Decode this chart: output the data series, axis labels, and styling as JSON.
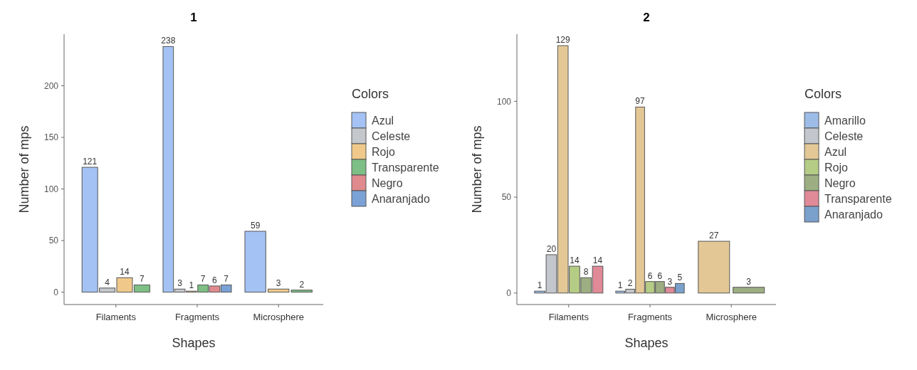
{
  "chart_data": [
    {
      "type": "bar",
      "title": "1",
      "xlabel": "Shapes",
      "ylabel": "Number of mps",
      "legend_title": "Colors",
      "legend": "right",
      "data_labels": true,
      "grid": false,
      "categories": [
        "Filaments",
        "Fragments",
        "Microsphere"
      ],
      "ylim": [
        -12,
        250
      ],
      "yticks": [
        0,
        50,
        100,
        150,
        200
      ],
      "series": [
        {
          "name": "Azul",
          "color": "#a4c2f4",
          "values": [
            121,
            238,
            59
          ]
        },
        {
          "name": "Celeste",
          "color": "#c4c7cc",
          "values": [
            4,
            3,
            null
          ]
        },
        {
          "name": "Rojo",
          "color": "#f0c98a",
          "values": [
            14,
            1,
            3
          ]
        },
        {
          "name": "Transparente",
          "color": "#7dbf85",
          "values": [
            7,
            7,
            2
          ]
        },
        {
          "name": "Negro",
          "color": "#e08a8e",
          "values": [
            null,
            6,
            null
          ]
        },
        {
          "name": "Anaranjado",
          "color": "#7aa2d6",
          "values": [
            null,
            7,
            null
          ]
        }
      ]
    },
    {
      "type": "bar",
      "title": "2",
      "xlabel": "Shapes",
      "ylabel": "Number of mps",
      "legend_title": "Colors",
      "legend": "right",
      "data_labels": true,
      "grid": false,
      "categories": [
        "Filaments",
        "Fragments",
        "Microsphere"
      ],
      "ylim": [
        -6,
        135
      ],
      "yticks": [
        0,
        50,
        100
      ],
      "series": [
        {
          "name": "Amarillo",
          "color": "#9dbde8",
          "values": [
            1,
            1,
            null
          ]
        },
        {
          "name": "Celeste",
          "color": "#c3c6cc",
          "values": [
            20,
            2,
            null
          ]
        },
        {
          "name": "Azul",
          "color": "#e3c896",
          "values": [
            129,
            97,
            27
          ]
        },
        {
          "name": "Rojo",
          "color": "#b5cc85",
          "values": [
            14,
            6,
            null
          ]
        },
        {
          "name": "Negro",
          "color": "#9daf82",
          "values": [
            8,
            6,
            3
          ]
        },
        {
          "name": "Transparente",
          "color": "#e08a98",
          "values": [
            14,
            3,
            null
          ]
        },
        {
          "name": "Anaranjado",
          "color": "#7aa0cc",
          "values": [
            null,
            5,
            null
          ]
        }
      ]
    }
  ]
}
